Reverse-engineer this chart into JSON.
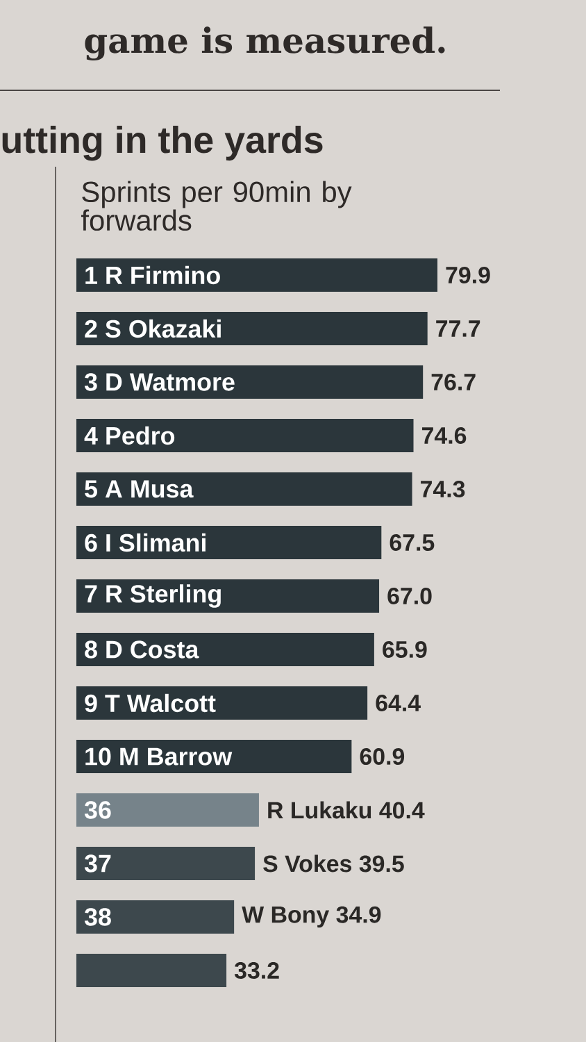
{
  "chart_data": {
    "type": "bar",
    "orientation": "horizontal",
    "title": "utting in the yards",
    "subtitle": "Sprints per 90min by forwards",
    "annotations": [
      "game is measured."
    ],
    "categories": [
      "1 R Firmino",
      "2 S Okazaki",
      "3 D Watmore",
      "4 Pedro",
      "5 A Musa",
      "6 I Slimani",
      "7 R Sterling",
      "8 D Costa",
      "9 T Walcott",
      "10 M Barrow",
      "36",
      "37",
      "38",
      null
    ],
    "values": [
      79.9,
      77.7,
      76.7,
      74.6,
      74.3,
      67.5,
      67.0,
      65.9,
      64.4,
      60.9,
      40.4,
      39.5,
      34.9,
      33.2
    ],
    "value_labels": [
      "79.9",
      "77.7",
      "76.7",
      "74.6",
      "74.3",
      "67.5",
      "67.0",
      "65.9",
      "64.4",
      "60.9",
      "R Lukaku 40.4",
      "S Vokes 39.5",
      "W Bony 34.9",
      "33.2"
    ],
    "colors": [
      "#2b363b",
      "#2b363b",
      "#2b363b",
      "#2b363b",
      "#2b363b",
      "#2b363b",
      "#2b363b",
      "#2b363b",
      "#2b363b",
      "#2b363b",
      "#76838a",
      "#3d484d",
      "#3d484d",
      "#3d484d"
    ],
    "tick_labels": "y"
  }
}
